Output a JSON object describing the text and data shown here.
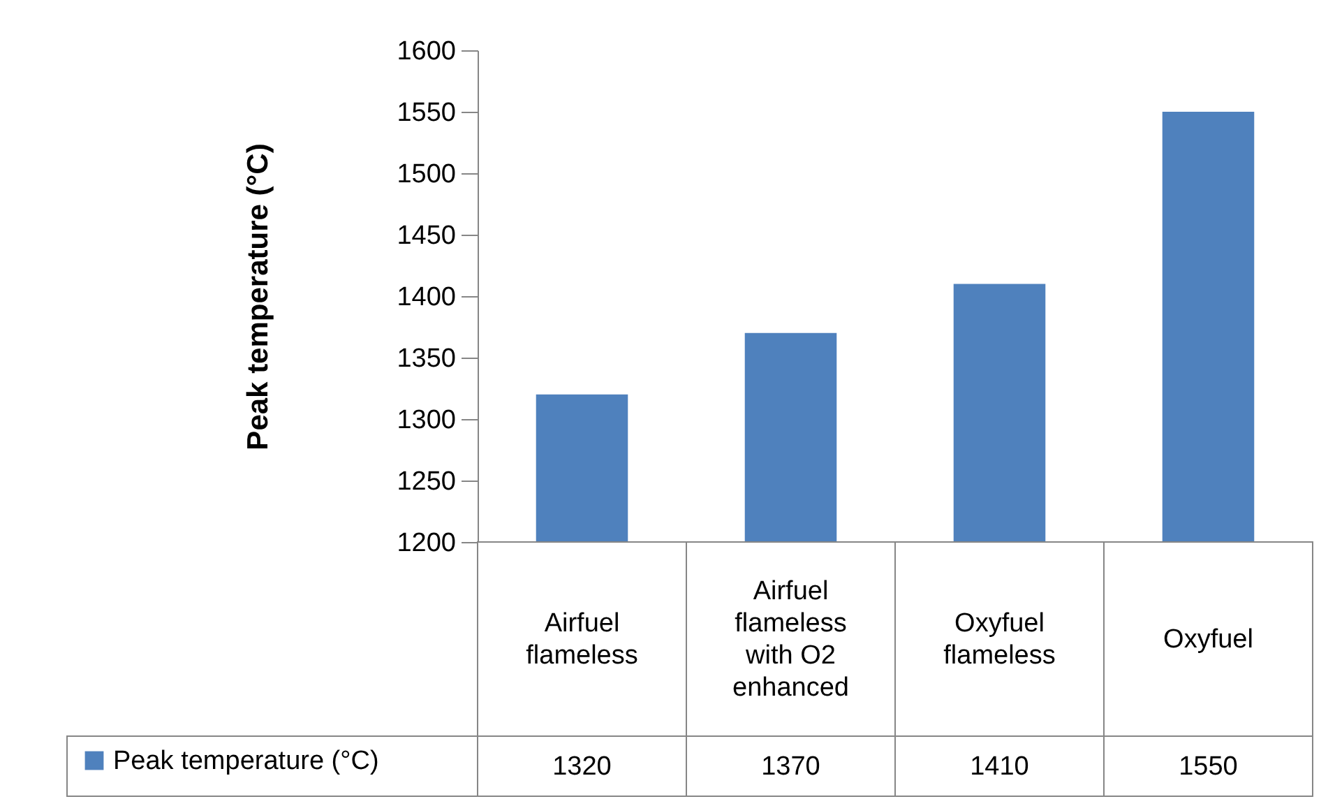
{
  "chart_data": {
    "type": "bar",
    "ylabel": "Peak temperature (°C)",
    "categories": [
      "Airfuel flameless",
      "Airfuel flameless with O2 enhanced",
      "Oxyfuel flameless",
      "Oxyfuel"
    ],
    "series": [
      {
        "name": "Peak temperature (°C)",
        "color": "#4f81bd",
        "values": [
          1320,
          1370,
          1410,
          1550
        ]
      }
    ],
    "ylim": [
      1200,
      1600
    ],
    "yticks": [
      1200,
      1250,
      1300,
      1350,
      1400,
      1450,
      1500,
      1550,
      1600
    ],
    "grid": false,
    "legend": "bottom left",
    "data_labels": true
  }
}
